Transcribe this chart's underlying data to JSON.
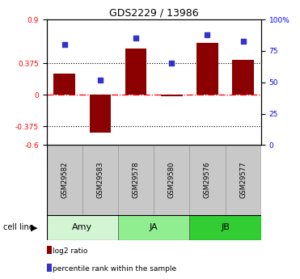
{
  "title": "GDS2229 / 13986",
  "samples": [
    "GSM29582",
    "GSM29583",
    "GSM29578",
    "GSM29580",
    "GSM29576",
    "GSM29577"
  ],
  "log2_ratio": [
    0.25,
    -0.45,
    0.55,
    -0.02,
    0.62,
    0.42
  ],
  "percentile": [
    80,
    52,
    85,
    65,
    88,
    83
  ],
  "bar_color": "#8B0000",
  "dot_color": "#3333CC",
  "ylim_left": [
    -0.6,
    0.9
  ],
  "ylim_right": [
    0,
    100
  ],
  "yticks_left": [
    -0.6,
    -0.375,
    0,
    0.375,
    0.9
  ],
  "yticks_right": [
    0,
    25,
    50,
    75,
    100
  ],
  "ytick_labels_left": [
    "-0.6",
    "-0.375",
    "0",
    "0.375",
    "0.9"
  ],
  "ytick_labels_right": [
    "0",
    "25",
    "50",
    "75",
    "100%"
  ],
  "hline_dotted": [
    -0.375,
    0.375
  ],
  "hline_dashdot": 0,
  "groups": [
    {
      "label": "Amy",
      "indices": [
        0,
        1
      ],
      "color": "#d4f5d4"
    },
    {
      "label": "JA",
      "indices": [
        2,
        3
      ],
      "color": "#90ee90"
    },
    {
      "label": "JB",
      "indices": [
        4,
        5
      ],
      "color": "#32cd32"
    }
  ],
  "cell_line_label": "cell line",
  "legend_items": [
    {
      "label": "log2 ratio",
      "color": "#8B0000"
    },
    {
      "label": "percentile rank within the sample",
      "color": "#3333CC"
    }
  ],
  "bar_width": 0.6,
  "sample_box_color": "#c8c8c8",
  "sample_box_border": "#999999"
}
